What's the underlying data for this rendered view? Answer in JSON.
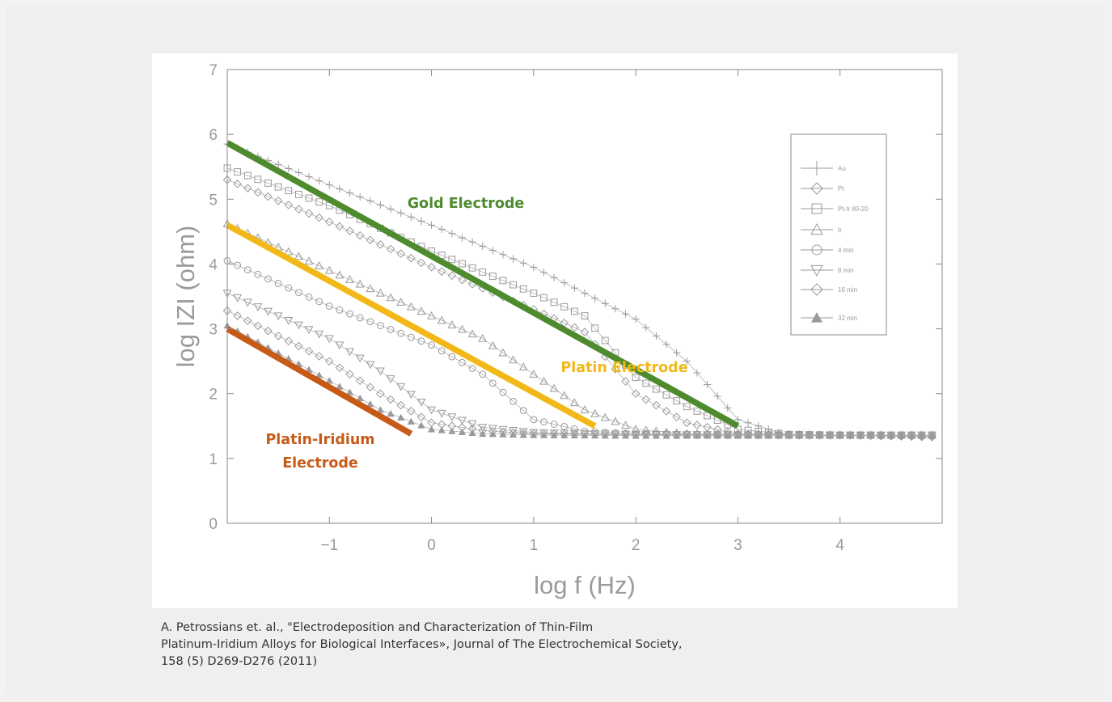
{
  "chart_data": {
    "type": "line",
    "xlabel": "log f (Hz)",
    "ylabel": "log IZI (ohm)",
    "xlim": [
      -2,
      5
    ],
    "ylim": [
      0,
      7
    ],
    "x_ticks": [
      -1,
      0,
      1,
      2,
      3,
      4
    ],
    "y_ticks": [
      0,
      1,
      2,
      3,
      4,
      5,
      6,
      7
    ],
    "grid": false,
    "legend_position": "top-right",
    "legend": [
      {
        "label": "Au",
        "marker": "plus"
      },
      {
        "label": "Pt",
        "marker": "diamond"
      },
      {
        "label": "Pt-Ir 80-20",
        "marker": "square"
      },
      {
        "label": "Ir",
        "marker": "triangle-up"
      },
      {
        "label": "4 min",
        "marker": "circle"
      },
      {
        "label": "8 min",
        "marker": "triangle-down"
      },
      {
        "label": "16 min",
        "marker": "diamond"
      },
      {
        "label": "32 min",
        "marker": "triangle-filled"
      }
    ],
    "series": [
      {
        "name": "Au",
        "marker": "plus",
        "points": [
          [
            -2,
            5.85
          ],
          [
            -1,
            5.22
          ],
          [
            0,
            4.6
          ],
          [
            1,
            3.95
          ],
          [
            2,
            3.15
          ],
          [
            2.5,
            2.5
          ],
          [
            3,
            1.6
          ],
          [
            3.5,
            1.35
          ],
          [
            4,
            1.35
          ],
          [
            4.9,
            1.35
          ]
        ]
      },
      {
        "name": "Pt",
        "marker": "diamond",
        "points": [
          [
            -2,
            5.3
          ],
          [
            -1,
            4.65
          ],
          [
            0,
            3.95
          ],
          [
            1,
            3.3
          ],
          [
            1.5,
            2.95
          ],
          [
            2,
            2.0
          ],
          [
            2.5,
            1.55
          ],
          [
            3,
            1.38
          ],
          [
            4,
            1.36
          ],
          [
            4.9,
            1.33
          ]
        ]
      },
      {
        "name": "Pt-Ir 80-20",
        "marker": "square",
        "points": [
          [
            -2,
            5.48
          ],
          [
            -1,
            4.9
          ],
          [
            0,
            4.2
          ],
          [
            1,
            3.55
          ],
          [
            1.5,
            3.2
          ],
          [
            2,
            2.25
          ],
          [
            2.5,
            1.8
          ],
          [
            3,
            1.45
          ],
          [
            3.5,
            1.37
          ],
          [
            4,
            1.36
          ],
          [
            4.9,
            1.36
          ]
        ]
      },
      {
        "name": "Ir",
        "marker": "triangle-up",
        "points": [
          [
            -2,
            4.62
          ],
          [
            -1,
            3.9
          ],
          [
            0,
            3.2
          ],
          [
            0.5,
            2.85
          ],
          [
            1,
            2.3
          ],
          [
            1.5,
            1.75
          ],
          [
            2,
            1.45
          ],
          [
            2.5,
            1.38
          ],
          [
            4,
            1.36
          ],
          [
            4.9,
            1.36
          ]
        ]
      },
      {
        "name": "4 min",
        "marker": "circle",
        "points": [
          [
            -2,
            4.05
          ],
          [
            -1,
            3.35
          ],
          [
            0,
            2.75
          ],
          [
            0.5,
            2.3
          ],
          [
            1,
            1.6
          ],
          [
            1.5,
            1.42
          ],
          [
            2,
            1.38
          ],
          [
            4,
            1.36
          ],
          [
            4.9,
            1.35
          ]
        ]
      },
      {
        "name": "8 min",
        "marker": "triangle-down",
        "points": [
          [
            -2,
            3.55
          ],
          [
            -1,
            2.85
          ],
          [
            -0.5,
            2.35
          ],
          [
            0,
            1.75
          ],
          [
            0.5,
            1.48
          ],
          [
            1,
            1.4
          ],
          [
            2,
            1.37
          ],
          [
            4,
            1.36
          ],
          [
            4.9,
            1.36
          ]
        ]
      },
      {
        "name": "16 min",
        "marker": "diamond",
        "points": [
          [
            -2,
            3.28
          ],
          [
            -1,
            2.5
          ],
          [
            -0.5,
            2.0
          ],
          [
            0,
            1.55
          ],
          [
            0.5,
            1.43
          ],
          [
            1,
            1.38
          ],
          [
            2,
            1.37
          ],
          [
            4,
            1.36
          ],
          [
            4.9,
            1.35
          ]
        ]
      },
      {
        "name": "32 min",
        "marker": "triangle-filled",
        "points": [
          [
            -2,
            3.05
          ],
          [
            -1,
            2.2
          ],
          [
            -0.5,
            1.75
          ],
          [
            0,
            1.45
          ],
          [
            0.5,
            1.38
          ],
          [
            1,
            1.36
          ],
          [
            2,
            1.35
          ],
          [
            4,
            1.35
          ],
          [
            4.9,
            1.35
          ]
        ]
      }
    ],
    "highlights": [
      {
        "label": "Gold Electrode",
        "color": "#4e8a2e",
        "points": [
          [
            -2,
            5.87
          ],
          [
            3,
            1.5
          ]
        ]
      },
      {
        "label": "Platin Electrode",
        "color": "#f2b818",
        "points": [
          [
            -2,
            4.6
          ],
          [
            1.6,
            1.5
          ]
        ]
      },
      {
        "label": "Platin-Iridium Electrode",
        "color": "#c85a18",
        "points": [
          [
            -2,
            3.0
          ],
          [
            -0.2,
            1.38
          ]
        ]
      }
    ],
    "annotations": [
      {
        "text": "Gold Electrode",
        "color": "#4e8a2e"
      },
      {
        "text": "Platin Electrode",
        "color": "#f2b818"
      },
      {
        "lines": [
          "Platin-Iridium",
          "Electrode"
        ],
        "color": "#c85a18"
      }
    ]
  },
  "caption": [
    "A. Petrossians et. al., \"Electrodeposition and Characterization of Thin-Film",
    "Platinum-Iridium Alloys for Biological Interfaces», Journal of The Electrochemical Society,",
    "158 (5) D269-D276 (2011)"
  ]
}
